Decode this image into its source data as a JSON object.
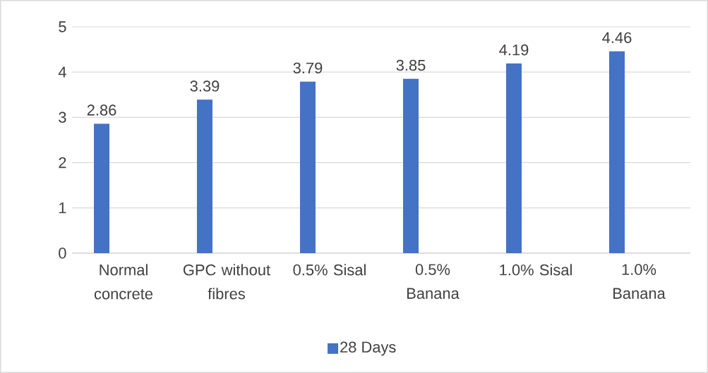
{
  "chart_data": {
    "type": "bar",
    "categories": [
      "Normal concrete",
      "GPC without fibres",
      "0.5% Sisal",
      "0.5% Banana",
      "1.0% Sisal",
      "1.0% Banana"
    ],
    "series": [
      {
        "name": "28 Days",
        "color": "#4472c4",
        "values": [
          2.86,
          3.39,
          3.79,
          3.85,
          4.19,
          4.46
        ]
      }
    ],
    "ylim": [
      0,
      5
    ],
    "yticks": [
      0,
      1,
      2,
      3,
      4,
      5
    ],
    "grid": "y",
    "legend": "bottom",
    "data_labels": true
  }
}
